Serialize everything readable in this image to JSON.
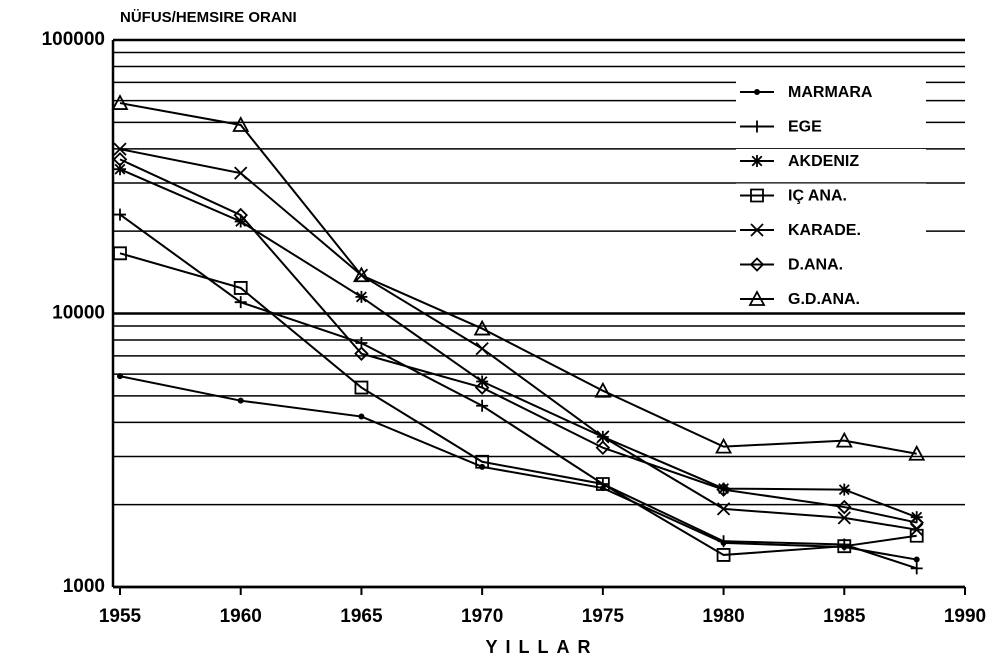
{
  "chart_data": {
    "type": "line",
    "title": "NÜFUS/HEMSIRE ORANI",
    "xlabel": "YILLAR",
    "x": [
      1955,
      1960,
      1965,
      1970,
      1975,
      1980,
      1985,
      1988
    ],
    "xlim": [
      1955,
      1990
    ],
    "xticks": [
      1955,
      1960,
      1965,
      1970,
      1975,
      1980,
      1985,
      1990
    ],
    "ylim": [
      1000,
      100000
    ],
    "yticks": [
      1000,
      10000,
      100000
    ],
    "log_y": true,
    "grid": true,
    "legend": "upper right",
    "series": [
      {
        "name": "MARMARA",
        "color": "#000000",
        "marker": "dot",
        "values": [
          5900,
          4800,
          4200,
          2750,
          2300,
          1450,
          1400,
          1260
        ]
      },
      {
        "name": "EGE",
        "color": "#000000",
        "marker": "plus",
        "values": [
          23000,
          11000,
          7800,
          4600,
          2380,
          1470,
          1430,
          1170
        ]
      },
      {
        "name": "AKDENIZ",
        "color": "#000000",
        "marker": "asterisk",
        "values": [
          33700,
          21700,
          11500,
          5640,
          3540,
          2290,
          2270,
          1800
        ]
      },
      {
        "name": "IÇ ANA.",
        "color": "#000000",
        "marker": "square",
        "values": [
          16600,
          12400,
          5360,
          2870,
          2380,
          1310,
          1410,
          1540
        ]
      },
      {
        "name": "KARADE.",
        "color": "#000000",
        "marker": "x",
        "values": [
          39900,
          32600,
          13800,
          7440,
          3540,
          1930,
          1790,
          1620
        ]
      },
      {
        "name": "D.ANA.",
        "color": "#000000",
        "marker": "diamond",
        "values": [
          36600,
          22900,
          7130,
          5360,
          3230,
          2270,
          1960,
          1720
        ]
      },
      {
        "name": "G.D.ANA.",
        "color": "#000000",
        "marker": "triangle",
        "values": [
          58800,
          48900,
          13800,
          8810,
          5220,
          3260,
          3430,
          3070
        ]
      }
    ]
  }
}
